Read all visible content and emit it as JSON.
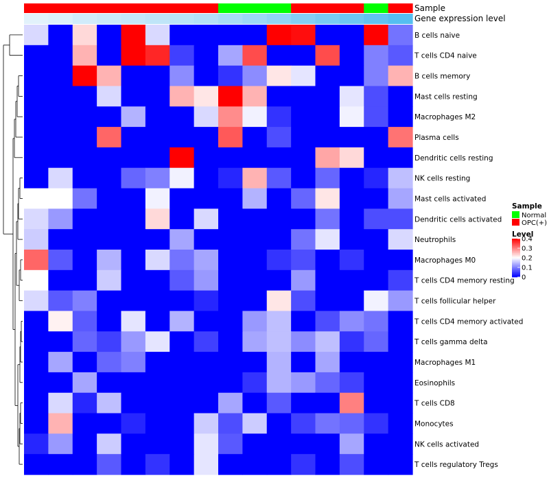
{
  "chart_data": {
    "type": "heatmap",
    "annotation_labels": {
      "sample": "Sample",
      "gene_expression": "Gene expression level"
    },
    "row_labels": [
      "B cells naive",
      "T cells CD4 naive",
      "B cells memory",
      "Mast cells resting",
      "Macrophages M2",
      "Plasma cells",
      "Dendritic cells resting",
      "NK cells resting",
      "Mast cells activated",
      "Dendritic cells activated",
      "Neutrophils",
      "Macrophages M0",
      "T cells CD4 memory resting",
      "T cells follicular helper",
      "T cells CD4 memory activated",
      "T cells gamma delta",
      "Macrophages M1",
      "Eosinophils",
      "T cells CD8",
      "Monocytes",
      "NK cells activated",
      "T cells regulatory  Tregs"
    ],
    "sample_groups": [
      "OPC",
      "OPC",
      "OPC",
      "OPC",
      "OPC",
      "OPC",
      "OPC",
      "OPC",
      "Normal",
      "Normal",
      "Normal",
      "OPC",
      "OPC",
      "OPC",
      "Normal",
      "OPC"
    ],
    "gene_expression_annotation": [
      0.04,
      0.06,
      0.1,
      0.12,
      0.14,
      0.16,
      0.18,
      0.2,
      0.24,
      0.28,
      0.32,
      0.36,
      0.4,
      0.44,
      0.48,
      0.52
    ],
    "values": [
      [
        0.17,
        0.0,
        0.23,
        0.0,
        0.4,
        0.17,
        0.0,
        0.0,
        0.0,
        0.0,
        0.43,
        0.39,
        0.0,
        0.0,
        0.43,
        0.09
      ],
      [
        0.0,
        0.0,
        0.26,
        0.0,
        0.42,
        0.37,
        0.05,
        0.0,
        0.13,
        0.34,
        0.0,
        0.0,
        0.34,
        0.0,
        0.1,
        0.07
      ],
      [
        0.0,
        0.0,
        0.44,
        0.26,
        0.0,
        0.0,
        0.11,
        0.0,
        0.04,
        0.11,
        0.22,
        0.18,
        0.0,
        0.0,
        0.1,
        0.26
      ],
      [
        0.0,
        0.0,
        0.0,
        0.17,
        0.0,
        0.0,
        0.26,
        0.22,
        0.43,
        0.26,
        0.0,
        0.0,
        0.0,
        0.18,
        0.06,
        0.0
      ],
      [
        0.0,
        0.0,
        0.0,
        0.0,
        0.14,
        0.0,
        0.0,
        0.17,
        0.29,
        0.19,
        0.04,
        0.0,
        0.0,
        0.19,
        0.06,
        0.0
      ],
      [
        0.0,
        0.0,
        0.0,
        0.32,
        0.0,
        0.0,
        0.0,
        0.0,
        0.33,
        0.0,
        0.06,
        0.0,
        0.0,
        0.0,
        0.0,
        0.31
      ],
      [
        0.0,
        0.0,
        0.0,
        0.0,
        0.0,
        0.0,
        0.41,
        0.0,
        0.0,
        0.0,
        0.0,
        0.0,
        0.27,
        0.23,
        0.0,
        0.0
      ],
      [
        0.0,
        0.17,
        0.0,
        0.0,
        0.08,
        0.1,
        0.19,
        0.0,
        0.03,
        0.26,
        0.07,
        0.0,
        0.08,
        0.0,
        0.03,
        0.15
      ],
      [
        0.2,
        0.2,
        0.09,
        0.0,
        0.0,
        0.19,
        0.0,
        0.0,
        0.0,
        0.14,
        0.0,
        0.08,
        0.22,
        0.0,
        0.0,
        0.13
      ],
      [
        0.17,
        0.12,
        0.0,
        0.0,
        0.0,
        0.23,
        0.0,
        0.17,
        0.0,
        0.0,
        0.0,
        0.0,
        0.09,
        0.0,
        0.06,
        0.06
      ],
      [
        0.16,
        0.0,
        0.0,
        0.0,
        0.0,
        0.0,
        0.13,
        0.0,
        0.0,
        0.0,
        0.0,
        0.09,
        0.18,
        0.0,
        0.0,
        0.17
      ],
      [
        0.32,
        0.07,
        0.0,
        0.14,
        0.0,
        0.17,
        0.09,
        0.13,
        0.0,
        0.0,
        0.04,
        0.06,
        0.0,
        0.04,
        0.0,
        0.0
      ],
      [
        0.2,
        0.0,
        0.0,
        0.16,
        0.0,
        0.0,
        0.07,
        0.12,
        0.0,
        0.0,
        0.0,
        0.12,
        0.0,
        0.0,
        0.0,
        0.05
      ],
      [
        0.17,
        0.07,
        0.1,
        0.0,
        0.0,
        0.0,
        0.0,
        0.03,
        0.0,
        0.0,
        0.22,
        0.06,
        0.0,
        0.0,
        0.19,
        0.12
      ],
      [
        0.0,
        0.21,
        0.07,
        0.0,
        0.18,
        0.0,
        0.14,
        0.0,
        0.0,
        0.12,
        0.15,
        0.0,
        0.06,
        0.11,
        0.09,
        0.0
      ],
      [
        0.0,
        0.0,
        0.08,
        0.05,
        0.12,
        0.18,
        0.0,
        0.05,
        0.0,
        0.13,
        0.15,
        0.11,
        0.15,
        0.04,
        0.08,
        0.0
      ],
      [
        0.0,
        0.13,
        0.0,
        0.08,
        0.1,
        0.0,
        0.0,
        0.0,
        0.0,
        0.0,
        0.14,
        0.0,
        0.13,
        0.0,
        0.0,
        0.0
      ],
      [
        0.0,
        0.0,
        0.13,
        0.0,
        0.0,
        0.0,
        0.0,
        0.0,
        0.0,
        0.04,
        0.14,
        0.12,
        0.08,
        0.05,
        0.0,
        0.0
      ],
      [
        0.0,
        0.17,
        0.03,
        0.15,
        0.0,
        0.0,
        0.0,
        0.0,
        0.13,
        0.0,
        0.07,
        0.0,
        0.0,
        0.3,
        0.0,
        0.0
      ],
      [
        0.0,
        0.26,
        0.0,
        0.0,
        0.03,
        0.0,
        0.0,
        0.16,
        0.06,
        0.16,
        0.0,
        0.05,
        0.09,
        0.08,
        0.04,
        0.0
      ],
      [
        0.03,
        0.12,
        0.0,
        0.16,
        0.0,
        0.0,
        0.0,
        0.18,
        0.07,
        0.0,
        0.0,
        0.0,
        0.0,
        0.13,
        0.0,
        0.0
      ],
      [
        0.0,
        0.0,
        0.0,
        0.07,
        0.0,
        0.04,
        0.0,
        0.18,
        0.0,
        0.0,
        0.0,
        0.04,
        0.0,
        0.06,
        0.0,
        0.0
      ]
    ],
    "legend": {
      "sample": {
        "title": "Sample",
        "entries": [
          {
            "label": "Normal",
            "color": "#00ff00"
          },
          {
            "label": "OPC(+)",
            "color": "#ff0000"
          }
        ]
      },
      "level": {
        "title": "Level",
        "ticks": [
          0.4,
          0.3,
          0.2,
          0.1,
          0
        ]
      }
    },
    "color_scale": {
      "min": 0,
      "mid": 0.2,
      "max": 0.4,
      "low_color": "#0000ff",
      "mid_color": "#ffffff",
      "high_color": "#ff0000"
    },
    "group_colors": {
      "Normal": "#00ff00",
      "OPC": "#ff0000"
    }
  }
}
